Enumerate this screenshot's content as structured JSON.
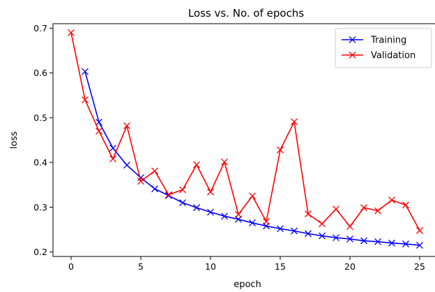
{
  "chart_data": {
    "type": "line",
    "title": "Loss vs. No. of epochs",
    "xlabel": "epoch",
    "ylabel": "loss",
    "xlim": [
      -1.3,
      26.3
    ],
    "ylim": [
      0.19,
      0.71
    ],
    "xticks": [
      0,
      5,
      10,
      15,
      20,
      25
    ],
    "yticks": [
      0.2,
      0.3,
      0.4,
      0.5,
      0.6,
      0.7
    ],
    "grid": false,
    "legend_position": "top-right",
    "series": [
      {
        "name": "Training",
        "color": "#0000ff",
        "marker": "x",
        "x": [
          1,
          2,
          3,
          4,
          5,
          6,
          7,
          8,
          9,
          10,
          11,
          12,
          13,
          14,
          15,
          16,
          17,
          18,
          19,
          20,
          21,
          22,
          23,
          24,
          25
        ],
        "y": [
          0.603,
          0.49,
          0.432,
          0.394,
          0.366,
          0.341,
          0.326,
          0.31,
          0.299,
          0.289,
          0.28,
          0.273,
          0.265,
          0.258,
          0.252,
          0.247,
          0.241,
          0.236,
          0.232,
          0.229,
          0.225,
          0.223,
          0.22,
          0.218,
          0.215
        ]
      },
      {
        "name": "Validation",
        "color": "#ff0000",
        "marker": "x",
        "x": [
          0,
          1,
          2,
          3,
          4,
          5,
          6,
          7,
          8,
          9,
          10,
          11,
          12,
          13,
          14,
          15,
          16,
          17,
          18,
          19,
          20,
          21,
          22,
          23,
          24,
          25
        ],
        "y": [
          0.69,
          0.54,
          0.47,
          0.408,
          0.482,
          0.358,
          0.381,
          0.328,
          0.339,
          0.395,
          0.334,
          0.401,
          0.284,
          0.325,
          0.268,
          0.428,
          0.491,
          0.285,
          0.263,
          0.296,
          0.257,
          0.299,
          0.292,
          0.316,
          0.305,
          0.248
        ]
      }
    ]
  }
}
